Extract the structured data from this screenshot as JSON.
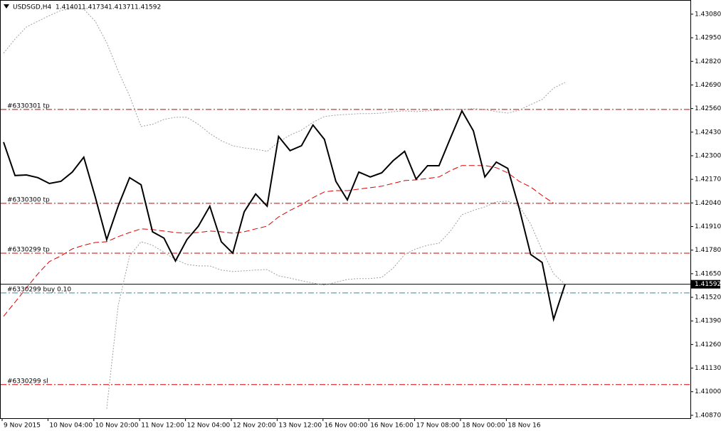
{
  "chart_data": {
    "type": "line",
    "title": "USDSGD,H4",
    "header": {
      "open": 1.41401,
      "high": 1.41734,
      "low": 1.41371,
      "close": 1.41592
    },
    "current_price": 1.41592,
    "categories": [
      "9 Nov 2015",
      null,
      null,
      null,
      "10 Nov 04:00",
      null,
      null,
      null,
      "10 Nov 20:00",
      null,
      null,
      null,
      "11 Nov 12:00",
      null,
      null,
      null,
      "12 Nov 04:00",
      null,
      null,
      null,
      "12 Nov 20:00",
      null,
      null,
      null,
      "13 Nov 12:00",
      null,
      null,
      null,
      "16 Nov 00:00",
      null,
      null,
      null,
      "16 Nov 16:00",
      null,
      null,
      null,
      "17 Nov 08:00",
      null,
      null,
      null,
      "18 Nov 00:00",
      null,
      null,
      null,
      "18 Nov 16",
      null,
      null,
      null,
      null,
      null
    ],
    "series": [
      {
        "color": "#a0a0a0",
        "line_style": "dotted",
        "values": [
          1.42865,
          1.42943,
          1.4301,
          1.43041,
          1.43072,
          1.431,
          1.43111,
          1.43107,
          1.43041,
          1.42923,
          1.42767,
          1.42629,
          1.42461,
          1.42473,
          1.425,
          1.42512,
          1.42512,
          1.42473,
          1.42422,
          1.42383,
          1.42355,
          1.42343,
          1.42336,
          1.42324,
          1.42375,
          1.42414,
          1.42441,
          1.42484,
          1.42516,
          1.42524,
          1.42528,
          1.42532,
          1.42532,
          1.42535,
          1.42543,
          1.42547,
          1.42543,
          1.42547,
          1.42551,
          1.42555,
          1.42555,
          1.42559,
          1.42555,
          1.42543,
          1.42535,
          1.42551,
          1.42582,
          1.4261,
          1.42673,
          1.42704
        ]
      },
      {
        "color": "#a0a0a0",
        "line_style": "dotted",
        "values": [
          null,
          null,
          null,
          null,
          null,
          null,
          null,
          null,
          null,
          1.40906,
          1.41474,
          1.41748,
          1.41826,
          1.41807,
          1.41768,
          1.41728,
          1.41701,
          1.41693,
          1.41693,
          1.4167,
          1.41662,
          1.41666,
          1.4167,
          1.41673,
          1.41638,
          1.41626,
          1.41611,
          1.41599,
          1.41587,
          1.41603,
          1.41619,
          1.41623,
          1.41623,
          1.4163,
          1.41681,
          1.41756,
          1.41787,
          1.41807,
          1.41818,
          1.41885,
          1.41975,
          1.41999,
          1.42018,
          1.42046,
          1.4205,
          1.42022,
          1.41924,
          1.41779,
          1.4165,
          1.41592
        ]
      },
      {
        "color": "#e00000",
        "line_style": "dashed",
        "values": [
          1.41415,
          1.41493,
          1.41572,
          1.4165,
          1.41717,
          1.41748,
          1.41787,
          1.41807,
          1.41822,
          1.41826,
          1.41854,
          1.41877,
          1.41897,
          1.41893,
          1.41885,
          1.41877,
          1.41873,
          1.41877,
          1.41885,
          1.41881,
          1.41873,
          1.41881,
          1.41897,
          1.41912,
          1.41963,
          1.41999,
          1.4203,
          1.42069,
          1.42101,
          1.42108,
          1.42108,
          1.42116,
          1.42124,
          1.42132,
          1.42148,
          1.42163,
          1.42167,
          1.42175,
          1.42183,
          1.42218,
          1.42246,
          1.42246,
          1.42246,
          1.42234,
          1.42206,
          1.42159,
          1.42128,
          1.42081,
          1.42038,
          null
        ]
      },
      {
        "color": "#000000",
        "line_style": "solid",
        "values": [
          1.42375,
          1.42191,
          1.42194,
          1.42179,
          1.42147,
          1.42159,
          1.4221,
          1.42292,
          1.42073,
          1.41838,
          1.42022,
          1.42179,
          1.4214,
          1.41881,
          1.41846,
          1.4172,
          1.41838,
          1.41912,
          1.42022,
          1.41826,
          1.41763,
          1.41991,
          1.42089,
          1.42022,
          1.42406,
          1.42328,
          1.42355,
          1.42469,
          1.4239,
          1.42159,
          1.42057,
          1.4221,
          1.42183,
          1.42206,
          1.42273,
          1.42324,
          1.42171,
          1.42245,
          1.42245,
          1.42398,
          1.42547,
          1.42437,
          1.42183,
          1.42265,
          1.4223,
          1.4201,
          1.41756,
          1.41712,
          1.41399,
          1.41592
        ]
      }
    ],
    "levels": [
      {
        "label": "#6330301 tp",
        "value": 1.42555,
        "color": "#d00000"
      },
      {
        "label": "#6330300 tp",
        "value": 1.42038,
        "color": "#d00000"
      },
      {
        "label": "#6330299 tp",
        "value": 1.41763,
        "color": "#d00000"
      },
      {
        "label": "#6330299 buy 0.10",
        "value": 1.41544,
        "color": "#2a8ab0"
      },
      {
        "label": "#6330299 sl",
        "value": 1.41039,
        "color": "#d00000"
      }
    ],
    "ylim": [
      1.40854,
      1.43158
    ],
    "yticks": [
      {
        "value": 1.4308,
        "label": "1.43080"
      },
      {
        "value": 1.4295,
        "label": "1.42950"
      },
      {
        "value": 1.4282,
        "label": "1.42820"
      },
      {
        "value": 1.4269,
        "label": "1.42690"
      },
      {
        "value": 1.4256,
        "label": "1.42560"
      },
      {
        "value": 1.4243,
        "label": "1.42430"
      },
      {
        "value": 1.423,
        "label": "1.42300"
      },
      {
        "value": 1.4217,
        "label": "1.42170"
      },
      {
        "value": 1.4204,
        "label": "1.42040"
      },
      {
        "value": 1.4191,
        "label": "1.41910"
      },
      {
        "value": 1.4178,
        "label": "1.41780"
      },
      {
        "value": 1.4165,
        "label": "1.41650"
      },
      {
        "value": 1.4152,
        "label": "1.41520"
      },
      {
        "value": 1.4139,
        "label": "1.41390"
      },
      {
        "value": 1.4126,
        "label": "1.41260"
      },
      {
        "value": 1.4113,
        "label": "1.41130"
      },
      {
        "value": 1.41,
        "label": "1.41000"
      },
      {
        "value": 1.4087,
        "label": "1.40870"
      }
    ]
  }
}
